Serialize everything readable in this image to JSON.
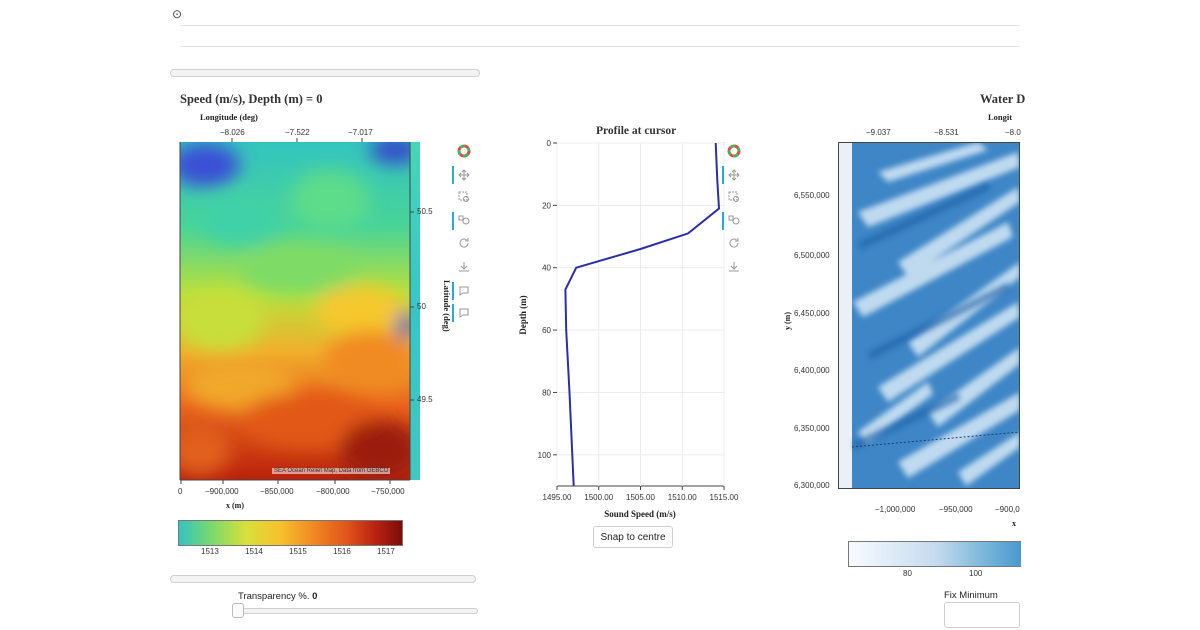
{
  "header": {
    "glyph": "⊙"
  },
  "left_panel": {
    "title": "Speed (m/s), Depth (m) = 0",
    "top_axis_label": "Longitude (deg)",
    "top_ticks": [
      "−8.026",
      "−7.522",
      "−7.017"
    ],
    "right_axis_label": "Latitude (deg)",
    "right_ticks": [
      "50.5",
      "50",
      "49.5"
    ],
    "bottom_ticks": [
      "0",
      "−900,000",
      "−850,000",
      "−800,000",
      "−750,000"
    ],
    "bottom_axis_label": "x (m)",
    "attribution": "SEA Ocean Relief Map, Data from GEBCO",
    "colorbar_ticks": [
      "1513",
      "1514",
      "1515",
      "1516",
      "1517"
    ],
    "transparency_label": "Transparency %.",
    "transparency_value": "0"
  },
  "toolbar_icons": [
    "bokeh-logo-icon",
    "pan-icon",
    "box-zoom-icon",
    "wheel-zoom-icon",
    "reset-icon",
    "save-icon",
    "hover-icon",
    "crosshair-icon"
  ],
  "chart_data": {
    "type": "line",
    "title": "Profile at cursor",
    "xlabel": "Sound Speed (m/s)",
    "ylabel": "Depth (m)",
    "xlim": [
      1495,
      1515
    ],
    "ylim": [
      110,
      0
    ],
    "xticks": [
      "1495.00",
      "1500.00",
      "1505.00",
      "1510.00",
      "1515.00"
    ],
    "yticks": [
      "0",
      "20",
      "40",
      "60",
      "80",
      "100"
    ],
    "points": [
      {
        "x": 1514.0,
        "y": 0
      },
      {
        "x": 1514.2,
        "y": 12
      },
      {
        "x": 1514.4,
        "y": 21
      },
      {
        "x": 1510.7,
        "y": 29
      },
      {
        "x": 1505.0,
        "y": 34
      },
      {
        "x": 1497.3,
        "y": 40
      },
      {
        "x": 1496.0,
        "y": 47
      },
      {
        "x": 1496.1,
        "y": 60
      },
      {
        "x": 1496.5,
        "y": 80
      },
      {
        "x": 1497.0,
        "y": 110
      }
    ],
    "line_color": "#2b2ea8"
  },
  "snap_button": "Snap to centre",
  "right_panel": {
    "title": "Water D",
    "top_axis_label": "Longit",
    "top_ticks": [
      "−9.037",
      "−8.531",
      "−8.0"
    ],
    "left_axis_label": "y (m)",
    "left_ticks": [
      "6,550,000",
      "6,500,000",
      "6,450,000",
      "6,400,000",
      "6,350,000",
      "6,300,000"
    ],
    "bottom_ticks": [
      "−1,000,000",
      "−950,000",
      "−900,0"
    ],
    "bottom_axis_label": "x",
    "colorbar_ticks": [
      "80",
      "100"
    ],
    "fix_min_label": "Fix Minimum"
  }
}
